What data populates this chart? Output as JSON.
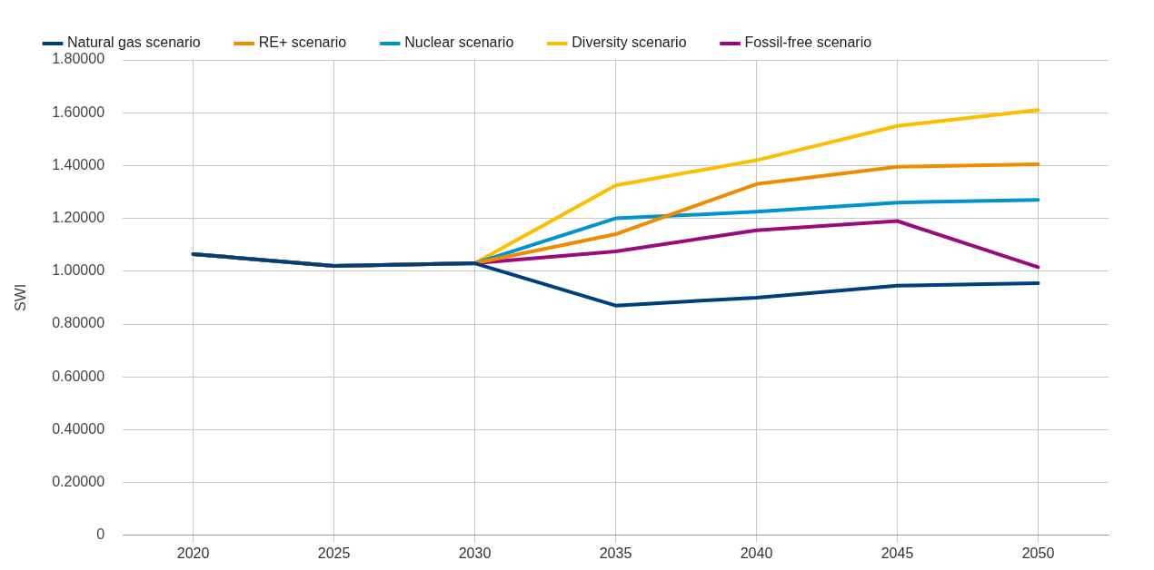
{
  "chart_data": {
    "type": "line",
    "ylabel": "SWI",
    "categories": [
      "2020",
      "2025",
      "2030",
      "2035",
      "2040",
      "2045",
      "2050"
    ],
    "series": [
      {
        "name": "Natural gas scenario",
        "color": "#003f7d",
        "values": [
          1.065,
          1.02,
          1.03,
          0.87,
          0.9,
          0.945,
          0.955
        ]
      },
      {
        "name": "RE+ scenario",
        "color": "#f08a00",
        "values": [
          1.065,
          1.02,
          1.03,
          1.14,
          1.33,
          1.395,
          1.405
        ]
      },
      {
        "name": "Nuclear scenario",
        "color": "#0093d0",
        "values": [
          1.065,
          1.02,
          1.03,
          1.2,
          1.225,
          1.26,
          1.27
        ]
      },
      {
        "name": "Diversity scenario",
        "color": "#fbbf00",
        "values": [
          1.065,
          1.02,
          1.03,
          1.325,
          1.42,
          1.55,
          1.61
        ]
      },
      {
        "name": "Fossil-free scenario",
        "color": "#9b0a7d",
        "values": [
          1.065,
          1.02,
          1.03,
          1.075,
          1.155,
          1.19,
          1.015
        ]
      }
    ],
    "ylim": [
      0,
      1.8
    ],
    "yticks": [
      0,
      {
        "value": 0.2,
        "label": "0.20000"
      },
      {
        "value": 0.4,
        "label": "0.40000"
      },
      {
        "value": 0.6,
        "label": "0.60000"
      },
      {
        "value": 0.8,
        "label": "0.80000"
      },
      {
        "value": 1,
        "label": "1.00000"
      },
      {
        "value": 1.2,
        "label": "1.20000"
      },
      {
        "value": 1.4,
        "label": "1.40000"
      },
      {
        "value": 1.6,
        "label": "1.60000"
      },
      {
        "value": 1.8,
        "label": "1.80000"
      }
    ],
    "grid": true,
    "legend": "top",
    "marker": "none",
    "line_style": "solid"
  }
}
